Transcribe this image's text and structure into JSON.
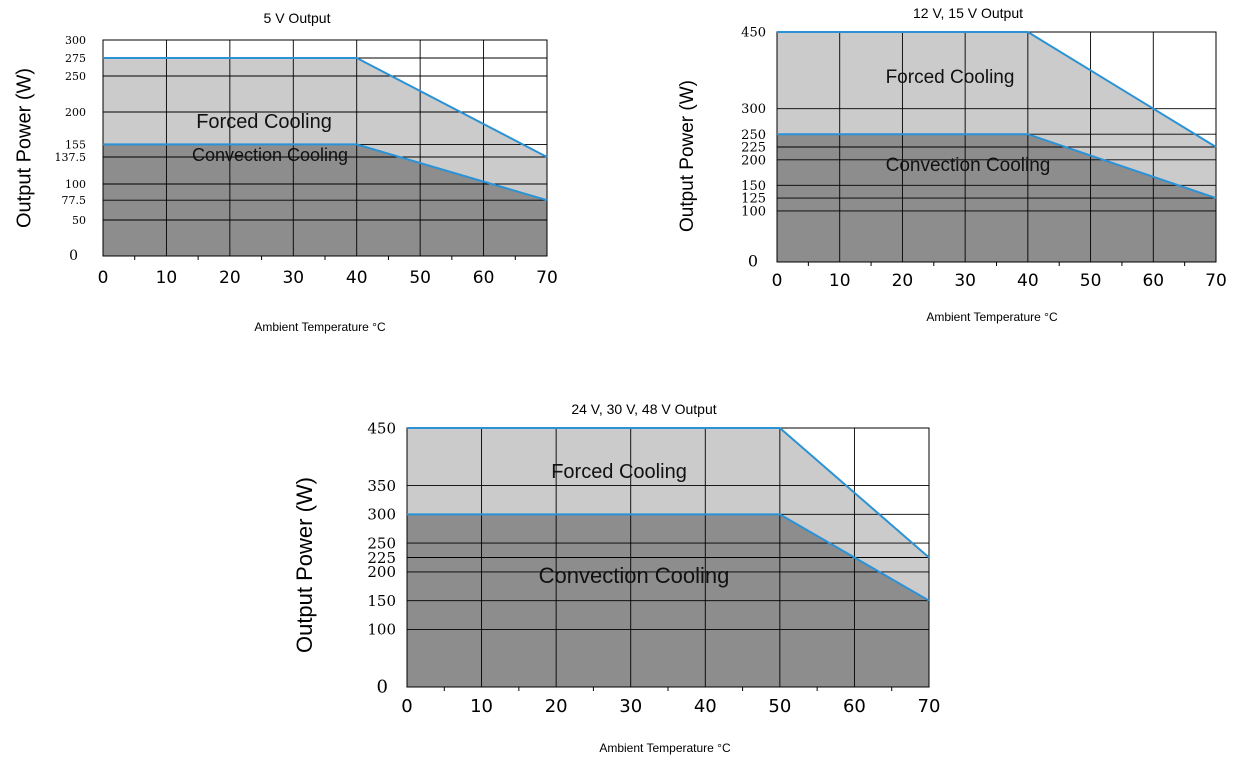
{
  "chart_data": [
    {
      "type": "area",
      "title": "5 V Output",
      "xlabel": "Ambient Temperature °C",
      "ylabel": "Output Power (W)",
      "xlim": [
        0,
        70
      ],
      "ylim": [
        0,
        300
      ],
      "x_ticks": [
        "0",
        "10",
        "20",
        "30",
        "40",
        "50",
        "60",
        "70"
      ],
      "y_ticks": [
        "300",
        "275",
        "250",
        "200",
        "155",
        "137.5",
        "100",
        "77.5",
        "50",
        "0"
      ],
      "y_tick_values": [
        300,
        275,
        250,
        200,
        155,
        137.5,
        100,
        77.5,
        50,
        0
      ],
      "grid": true,
      "series": [
        {
          "name": "Forced Cooling",
          "points": [
            [
              0,
              275
            ],
            [
              40,
              275
            ],
            [
              70,
              137.5
            ]
          ]
        },
        {
          "name": "Convection Cooling",
          "points": [
            [
              0,
              155
            ],
            [
              40,
              155
            ],
            [
              70,
              77.5
            ]
          ]
        }
      ]
    },
    {
      "type": "area",
      "title": "12 V, 15 V Output",
      "xlabel": "Ambient Temperature °C",
      "ylabel": "Output Power (W)",
      "xlim": [
        0,
        70
      ],
      "ylim": [
        0,
        450
      ],
      "x_ticks": [
        "0",
        "10",
        "20",
        "30",
        "40",
        "50",
        "60",
        "70"
      ],
      "y_ticks": [
        "450",
        "300",
        "250",
        "225",
        "200",
        "150",
        "125",
        "100",
        "0"
      ],
      "y_tick_values": [
        450,
        300,
        250,
        225,
        200,
        150,
        125,
        100,
        0
      ],
      "grid": true,
      "series": [
        {
          "name": "Forced Cooling",
          "points": [
            [
              0,
              450
            ],
            [
              40,
              450
            ],
            [
              70,
              225
            ]
          ]
        },
        {
          "name": "Convection Cooling",
          "points": [
            [
              0,
              250
            ],
            [
              40,
              250
            ],
            [
              70,
              125
            ]
          ]
        }
      ]
    },
    {
      "type": "area",
      "title": "24 V, 30 V, 48 V Output",
      "xlabel": "Ambient Temperature °C",
      "ylabel": "Output Power (W)",
      "xlim": [
        0,
        70
      ],
      "ylim": [
        0,
        450
      ],
      "x_ticks": [
        "0",
        "10",
        "20",
        "30",
        "40",
        "50",
        "60",
        "70"
      ],
      "y_ticks": [
        "450",
        "350",
        "300",
        "250",
        "225",
        "200",
        "150",
        "100",
        "0"
      ],
      "y_tick_values": [
        450,
        350,
        300,
        250,
        225,
        200,
        150,
        100,
        0
      ],
      "grid": true,
      "series": [
        {
          "name": "Forced Cooling",
          "points": [
            [
              0,
              450
            ],
            [
              50,
              450
            ],
            [
              70,
              225
            ]
          ]
        },
        {
          "name": "Convection Cooling",
          "points": [
            [
              0,
              300
            ],
            [
              50,
              300
            ],
            [
              70,
              150
            ]
          ]
        }
      ]
    }
  ],
  "colors": {
    "forced_fill": "#cbcbcb",
    "convection_fill": "#8d8d8d",
    "line": "#2b92d6",
    "grid": "#000000"
  }
}
